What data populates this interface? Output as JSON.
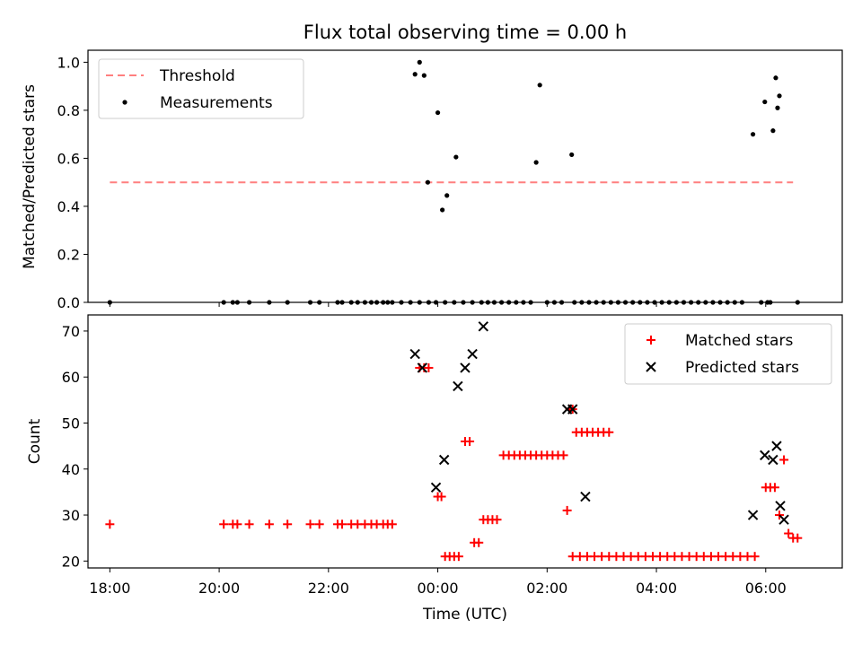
{
  "figure_title": "Flux total observing time = 0.00 h",
  "colors": {
    "threshold": "#ff7f7f",
    "measurement": "#000000",
    "matched": "#ff0000",
    "predicted": "#000000"
  },
  "chart_data": [
    {
      "type": "scatter",
      "ylabel": "Matched/Predicted stars",
      "ylim": [
        0,
        1.05
      ],
      "yticks": [
        0.0,
        0.2,
        0.4,
        0.6,
        0.8,
        1.0
      ],
      "ytick_labels": [
        "0.0",
        "0.2",
        "0.4",
        "0.6",
        "0.8",
        "1.0"
      ],
      "x_hours_range": [
        17.6,
        31.4
      ],
      "legend": {
        "position": "top-left",
        "threshold_label": "Threshold",
        "measurements_label": "Measurements"
      },
      "threshold": {
        "value": 0.5,
        "x_start": "18:00",
        "x_end": "06:30"
      },
      "measurements": [
        [
          "18:00",
          0
        ],
        [
          "20:05",
          0
        ],
        [
          "20:15",
          0
        ],
        [
          "20:20",
          0
        ],
        [
          "20:33",
          0
        ],
        [
          "20:55",
          0
        ],
        [
          "21:15",
          0
        ],
        [
          "21:40",
          0
        ],
        [
          "21:50",
          0
        ],
        [
          "22:10",
          0
        ],
        [
          "22:15",
          0
        ],
        [
          "22:25",
          0
        ],
        [
          "22:32",
          0
        ],
        [
          "22:40",
          0
        ],
        [
          "22:47",
          0
        ],
        [
          "22:53",
          0
        ],
        [
          "23:00",
          0
        ],
        [
          "23:05",
          0
        ],
        [
          "23:10",
          0
        ],
        [
          "23:20",
          0
        ],
        [
          "23:30",
          0
        ],
        [
          "23:40",
          0
        ],
        [
          "23:50",
          0
        ],
        [
          "23:58",
          0
        ],
        [
          "00:08",
          0
        ],
        [
          "00:18",
          0
        ],
        [
          "00:28",
          0
        ],
        [
          "00:38",
          0
        ],
        [
          "00:48",
          0
        ],
        [
          "00:55",
          0
        ],
        [
          "01:02",
          0
        ],
        [
          "01:10",
          0
        ],
        [
          "01:18",
          0
        ],
        [
          "01:26",
          0
        ],
        [
          "01:34",
          0
        ],
        [
          "01:42",
          0
        ],
        [
          "02:00",
          0
        ],
        [
          "02:08",
          0
        ],
        [
          "02:16",
          0
        ],
        [
          "02:30",
          0
        ],
        [
          "02:38",
          0
        ],
        [
          "02:46",
          0
        ],
        [
          "02:54",
          0
        ],
        [
          "03:02",
          0
        ],
        [
          "03:10",
          0
        ],
        [
          "03:18",
          0
        ],
        [
          "03:26",
          0
        ],
        [
          "03:34",
          0
        ],
        [
          "03:42",
          0
        ],
        [
          "03:50",
          0
        ],
        [
          "03:58",
          0
        ],
        [
          "04:06",
          0
        ],
        [
          "04:14",
          0
        ],
        [
          "04:22",
          0
        ],
        [
          "04:30",
          0
        ],
        [
          "04:38",
          0
        ],
        [
          "04:46",
          0
        ],
        [
          "04:54",
          0
        ],
        [
          "05:02",
          0
        ],
        [
          "05:10",
          0
        ],
        [
          "05:18",
          0
        ],
        [
          "05:26",
          0
        ],
        [
          "05:34",
          0
        ],
        [
          "05:55",
          0
        ],
        [
          "06:02",
          0
        ],
        [
          "06:05",
          0
        ],
        [
          "06:35",
          0
        ],
        [
          "23:35",
          0.95
        ],
        [
          "23:40",
          1.0
        ],
        [
          "23:45",
          0.945
        ],
        [
          "23:49",
          0.5
        ],
        [
          "00:00",
          0.79
        ],
        [
          "00:05",
          0.385
        ],
        [
          "00:10",
          0.445
        ],
        [
          "00:20",
          0.605
        ],
        [
          "01:48",
          0.583
        ],
        [
          "01:52",
          0.905
        ],
        [
          "02:27",
          0.615
        ],
        [
          "05:46",
          0.7
        ],
        [
          "05:59",
          0.835
        ],
        [
          "06:08",
          0.715
        ],
        [
          "06:11",
          0.935
        ],
        [
          "06:13",
          0.81
        ],
        [
          "06:15",
          0.86
        ]
      ]
    },
    {
      "type": "scatter",
      "xlabel": "Time (UTC)",
      "ylabel": "Count",
      "ylim": [
        18.5,
        73.5
      ],
      "yticks": [
        20,
        30,
        40,
        50,
        60,
        70
      ],
      "ytick_labels": [
        "20",
        "30",
        "40",
        "50",
        "60",
        "70"
      ],
      "x_hours_range": [
        17.6,
        31.4
      ],
      "xticks": [
        18,
        20,
        22,
        24,
        26,
        28,
        30
      ],
      "xtick_labels": [
        "18:00",
        "20:00",
        "22:00",
        "00:00",
        "02:00",
        "04:00",
        "06:00"
      ],
      "legend": {
        "position": "top-right",
        "matched_label": "Matched stars",
        "predicted_label": "Predicted stars"
      },
      "matched": [
        [
          "18:00",
          28
        ],
        [
          "20:05",
          28
        ],
        [
          "20:15",
          28
        ],
        [
          "20:20",
          28
        ],
        [
          "20:33",
          28
        ],
        [
          "20:55",
          28
        ],
        [
          "21:15",
          28
        ],
        [
          "21:40",
          28
        ],
        [
          "21:50",
          28
        ],
        [
          "22:10",
          28
        ],
        [
          "22:15",
          28
        ],
        [
          "22:25",
          28
        ],
        [
          "22:32",
          28
        ],
        [
          "22:40",
          28
        ],
        [
          "22:47",
          28
        ],
        [
          "22:53",
          28
        ],
        [
          "23:00",
          28
        ],
        [
          "23:05",
          28
        ],
        [
          "23:10",
          28
        ],
        [
          "23:40",
          62
        ],
        [
          "23:45",
          62
        ],
        [
          "23:50",
          62
        ],
        [
          "00:00",
          34
        ],
        [
          "00:04",
          34
        ],
        [
          "00:08",
          21
        ],
        [
          "00:13",
          21
        ],
        [
          "00:18",
          21
        ],
        [
          "00:23",
          21
        ],
        [
          "00:30",
          46
        ],
        [
          "00:35",
          46
        ],
        [
          "00:40",
          24
        ],
        [
          "00:45",
          24
        ],
        [
          "00:50",
          29
        ],
        [
          "00:55",
          29
        ],
        [
          "01:00",
          29
        ],
        [
          "01:05",
          29
        ],
        [
          "01:12",
          43
        ],
        [
          "01:18",
          43
        ],
        [
          "01:24",
          43
        ],
        [
          "01:30",
          43
        ],
        [
          "01:36",
          43
        ],
        [
          "01:42",
          43
        ],
        [
          "01:48",
          43
        ],
        [
          "01:54",
          43
        ],
        [
          "02:00",
          43
        ],
        [
          "02:06",
          43
        ],
        [
          "02:12",
          43
        ],
        [
          "02:18",
          43
        ],
        [
          "02:22",
          31
        ],
        [
          "02:25",
          53
        ],
        [
          "02:28",
          53
        ],
        [
          "02:32",
          48
        ],
        [
          "02:38",
          48
        ],
        [
          "02:44",
          48
        ],
        [
          "02:50",
          48
        ],
        [
          "02:56",
          48
        ],
        [
          "03:02",
          48
        ],
        [
          "03:08",
          48
        ],
        [
          "02:28",
          21
        ],
        [
          "02:36",
          21
        ],
        [
          "02:44",
          21
        ],
        [
          "02:52",
          21
        ],
        [
          "03:00",
          21
        ],
        [
          "03:08",
          21
        ],
        [
          "03:16",
          21
        ],
        [
          "03:24",
          21
        ],
        [
          "03:32",
          21
        ],
        [
          "03:40",
          21
        ],
        [
          "03:48",
          21
        ],
        [
          "03:56",
          21
        ],
        [
          "04:04",
          21
        ],
        [
          "04:12",
          21
        ],
        [
          "04:20",
          21
        ],
        [
          "04:28",
          21
        ],
        [
          "04:36",
          21
        ],
        [
          "04:44",
          21
        ],
        [
          "04:52",
          21
        ],
        [
          "05:00",
          21
        ],
        [
          "05:08",
          21
        ],
        [
          "05:16",
          21
        ],
        [
          "05:24",
          21
        ],
        [
          "05:32",
          21
        ],
        [
          "05:40",
          21
        ],
        [
          "05:48",
          21
        ],
        [
          "06:00",
          36
        ],
        [
          "06:05",
          36
        ],
        [
          "06:10",
          36
        ],
        [
          "06:15",
          30
        ],
        [
          "06:20",
          42
        ],
        [
          "06:25",
          26
        ],
        [
          "06:30",
          25
        ],
        [
          "06:35",
          25
        ]
      ],
      "predicted": [
        [
          "23:35",
          65
        ],
        [
          "23:43",
          62
        ],
        [
          "23:58",
          36
        ],
        [
          "00:07",
          42
        ],
        [
          "00:22",
          58
        ],
        [
          "00:30",
          62
        ],
        [
          "00:38",
          65
        ],
        [
          "00:50",
          71
        ],
        [
          "02:22",
          53
        ],
        [
          "02:28",
          53
        ],
        [
          "02:42",
          34
        ],
        [
          "05:46",
          30
        ],
        [
          "05:59",
          43
        ],
        [
          "06:08",
          42
        ],
        [
          "06:12",
          45
        ],
        [
          "06:16",
          32
        ],
        [
          "06:20",
          29
        ]
      ]
    }
  ]
}
